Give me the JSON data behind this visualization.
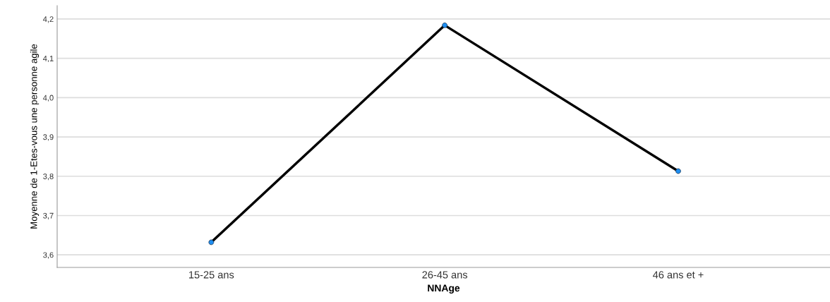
{
  "chart_data": {
    "type": "line",
    "xlabel": "NNAge",
    "ylabel": "Moyenne de 1-Etes-vous une personne agile",
    "categories": [
      "15-25 ans",
      "26-45 ans",
      "46 ans et +"
    ],
    "series": [
      {
        "color": "#000000",
        "values": [
          3.632,
          4.184,
          3.813
        ]
      }
    ],
    "ylim": [
      3.568,
      4.234
    ],
    "yticks": [
      {
        "value": 3.6,
        "label": "3,6"
      },
      {
        "value": 3.7,
        "label": "3,7"
      },
      {
        "value": 3.8,
        "label": "3,8"
      },
      {
        "value": 3.9,
        "label": "3,9"
      },
      {
        "value": 4.0,
        "label": "4,0"
      },
      {
        "value": 4.1,
        "label": "4,1"
      },
      {
        "value": 4.2,
        "label": "4,2"
      }
    ],
    "grid": "y",
    "marker": "circle",
    "line_style": "solid"
  }
}
